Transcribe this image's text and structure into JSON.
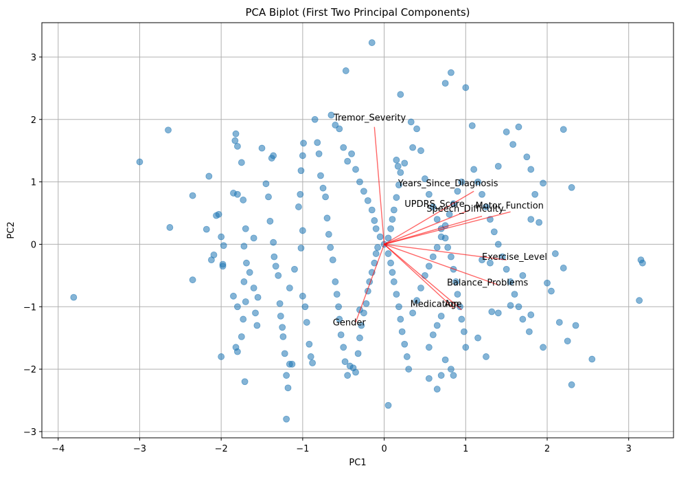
{
  "chart_data": {
    "type": "scatter",
    "title": "PCA Biplot (First Two Principal Components)",
    "xlabel": "PC1",
    "ylabel": "PC2",
    "xlim": [
      -4.2,
      3.55
    ],
    "ylim": [
      -3.1,
      3.55
    ],
    "xticks": [
      -4,
      -3,
      -2,
      -1,
      0,
      1,
      2,
      3
    ],
    "yticks": [
      -3,
      -2,
      -1,
      0,
      1,
      2,
      3
    ],
    "grid": true,
    "colors": {
      "points": "#1f77b4",
      "loadings": "#ff0000",
      "grid": "#b0b0b0"
    },
    "loadings": [
      {
        "label": "Tremor_Severity",
        "x": -0.12,
        "y": 1.88,
        "label_x": -0.62,
        "label_y": 1.98
      },
      {
        "label": "Years_Since_Diagnosis",
        "x": 1.1,
        "y": 0.85,
        "label_x": 0.17,
        "label_y": 0.93
      },
      {
        "label": "UPDRS_Score",
        "x": 1.05,
        "y": 0.55,
        "label_x": 0.25,
        "label_y": 0.6
      },
      {
        "label": "Motor_Function",
        "x": 1.55,
        "y": 0.52,
        "label_x": 1.12,
        "label_y": 0.57
      },
      {
        "label": "Speech_Difficulty",
        "x": 1.2,
        "y": 0.45,
        "label_x": 0.52,
        "label_y": 0.52
      },
      {
        "label": "Exercise_Level",
        "x": 1.5,
        "y": -0.25,
        "label_x": 1.2,
        "label_y": -0.25
      },
      {
        "label": "Balance_Problems",
        "x": 1.4,
        "y": -0.65,
        "label_x": 0.77,
        "label_y": -0.66
      },
      {
        "label": "Medication",
        "x": 0.85,
        "y": -1.02,
        "label_x": 0.32,
        "label_y": -1.0
      },
      {
        "label": "Age",
        "x": 0.95,
        "y": -1.05,
        "label_x": 0.74,
        "label_y": -1.0
      },
      {
        "label": "Gender",
        "x": -0.35,
        "y": -1.25,
        "label_x": -0.63,
        "label_y": -1.3
      }
    ],
    "points": [
      [
        -3.81,
        -0.85
      ],
      [
        -3.0,
        1.32
      ],
      [
        -2.65,
        1.83
      ],
      [
        -2.63,
        0.27
      ],
      [
        -2.35,
        0.78
      ],
      [
        -2.35,
        -0.57
      ],
      [
        -2.15,
        1.09
      ],
      [
        -2.18,
        0.24
      ],
      [
        -2.12,
        -0.25
      ],
      [
        -2.06,
        0.46
      ],
      [
        -2.03,
        0.48
      ],
      [
        -2.0,
        0.12
      ],
      [
        -1.98,
        -0.32
      ],
      [
        -1.98,
        -0.35
      ],
      [
        -2.0,
        -1.8
      ],
      [
        -1.97,
        -0.02
      ],
      [
        -2.09,
        -0.17
      ],
      [
        -1.85,
        0.82
      ],
      [
        -1.82,
        1.77
      ],
      [
        -1.83,
        1.66
      ],
      [
        -1.8,
        1.57
      ],
      [
        -1.8,
        0.8
      ],
      [
        -1.75,
        1.31
      ],
      [
        -1.73,
        0.71
      ],
      [
        -1.7,
        0.25
      ],
      [
        -1.72,
        -0.03
      ],
      [
        -1.69,
        -0.3
      ],
      [
        -1.7,
        -0.92
      ],
      [
        -1.73,
        -1.2
      ],
      [
        -1.75,
        -1.48
      ],
      [
        -1.71,
        -2.2
      ],
      [
        -1.85,
        -0.83
      ],
      [
        -1.82,
        -1.65
      ],
      [
        -1.8,
        -1.72
      ],
      [
        -1.8,
        -1.0
      ],
      [
        -1.72,
        -0.6
      ],
      [
        -1.65,
        -0.45
      ],
      [
        -1.6,
        -0.7
      ],
      [
        -1.58,
        -1.1
      ],
      [
        -1.56,
        -1.3
      ],
      [
        -1.55,
        -0.85
      ],
      [
        -1.6,
        0.1
      ],
      [
        -1.5,
        1.54
      ],
      [
        -1.45,
        0.97
      ],
      [
        -1.42,
        0.76
      ],
      [
        -1.4,
        0.37
      ],
      [
        -1.38,
        1.38
      ],
      [
        -1.36,
        1.42
      ],
      [
        -1.36,
        0.03
      ],
      [
        -1.35,
        -0.2
      ],
      [
        -1.33,
        -0.35
      ],
      [
        -1.3,
        -0.5
      ],
      [
        -1.28,
        -0.95
      ],
      [
        -1.27,
        -1.15
      ],
      [
        -1.25,
        -1.33
      ],
      [
        -1.24,
        -1.48
      ],
      [
        -1.22,
        -1.75
      ],
      [
        -1.2,
        -2.1
      ],
      [
        -1.2,
        -2.8
      ],
      [
        -1.18,
        -2.3
      ],
      [
        -1.16,
        -1.92
      ],
      [
        -1.13,
        -1.92
      ],
      [
        -1.16,
        -0.7
      ],
      [
        -1.1,
        -0.4
      ],
      [
        -1.05,
        0.6
      ],
      [
        -1.03,
        0.8
      ],
      [
        -1.02,
        1.18
      ],
      [
        -1.0,
        1.42
      ],
      [
        -0.99,
        1.62
      ],
      [
        -1.0,
        0.22
      ],
      [
        -1.02,
        -0.06
      ],
      [
        -1.0,
        -0.83
      ],
      [
        -0.97,
        -1.0
      ],
      [
        -0.95,
        -1.25
      ],
      [
        -0.92,
        -1.6
      ],
      [
        -0.9,
        -1.8
      ],
      [
        -0.88,
        -1.9
      ],
      [
        -0.85,
        2.0
      ],
      [
        -0.82,
        1.63
      ],
      [
        -0.8,
        1.45
      ],
      [
        -0.78,
        1.1
      ],
      [
        -0.75,
        0.9
      ],
      [
        -0.72,
        0.76
      ],
      [
        -0.7,
        0.42
      ],
      [
        -0.68,
        0.16
      ],
      [
        -0.66,
        -0.05
      ],
      [
        -0.63,
        -0.25
      ],
      [
        -0.6,
        -0.6
      ],
      [
        -0.58,
        -0.8
      ],
      [
        -0.56,
        -1.0
      ],
      [
        -0.55,
        -1.2
      ],
      [
        -0.53,
        -1.45
      ],
      [
        -0.5,
        -1.65
      ],
      [
        -0.48,
        -1.88
      ],
      [
        -0.45,
        -2.1
      ],
      [
        -0.42,
        -1.95
      ],
      [
        -0.38,
        -1.98
      ],
      [
        -0.35,
        -2.05
      ],
      [
        -0.32,
        -1.75
      ],
      [
        -0.3,
        -1.5
      ],
      [
        -0.28,
        -1.3
      ],
      [
        -0.25,
        -1.1
      ],
      [
        -0.22,
        -0.95
      ],
      [
        -0.2,
        -0.75
      ],
      [
        -0.18,
        -0.6
      ],
      [
        -0.15,
        -0.45
      ],
      [
        -0.12,
        -0.3
      ],
      [
        -0.1,
        -0.15
      ],
      [
        -0.08,
        -0.05
      ],
      [
        -0.65,
        2.07
      ],
      [
        -0.6,
        1.91
      ],
      [
        -0.55,
        1.85
      ],
      [
        -0.5,
        1.55
      ],
      [
        -0.45,
        1.33
      ],
      [
        -0.4,
        1.45
      ],
      [
        -0.35,
        1.2
      ],
      [
        -0.3,
        1.0
      ],
      [
        -0.25,
        0.85
      ],
      [
        -0.2,
        0.7
      ],
      [
        -0.15,
        0.55
      ],
      [
        -0.12,
        0.38
      ],
      [
        -0.1,
        0.25
      ],
      [
        -0.05,
        0.12
      ],
      [
        0.0,
        0.0
      ],
      [
        -0.47,
        2.78
      ],
      [
        -0.15,
        3.23
      ],
      [
        -0.3,
        -1.05
      ],
      [
        0.05,
        0.1
      ],
      [
        0.08,
        0.25
      ],
      [
        0.1,
        0.4
      ],
      [
        0.12,
        0.55
      ],
      [
        0.15,
        0.75
      ],
      [
        0.18,
        0.95
      ],
      [
        0.2,
        1.15
      ],
      [
        0.25,
        1.3
      ],
      [
        0.2,
        2.4
      ],
      [
        0.15,
        1.35
      ],
      [
        0.17,
        1.25
      ],
      [
        0.33,
        1.96
      ],
      [
        0.35,
        1.55
      ],
      [
        0.4,
        1.85
      ],
      [
        0.45,
        1.5
      ],
      [
        0.5,
        1.05
      ],
      [
        0.55,
        0.8
      ],
      [
        0.6,
        0.6
      ],
      [
        0.65,
        0.4
      ],
      [
        0.7,
        0.25
      ],
      [
        0.75,
        0.1
      ],
      [
        0.78,
        -0.05
      ],
      [
        0.82,
        -0.2
      ],
      [
        0.85,
        -0.4
      ],
      [
        0.88,
        -0.6
      ],
      [
        0.9,
        -0.8
      ],
      [
        0.93,
        -1.0
      ],
      [
        0.95,
        -1.2
      ],
      [
        0.98,
        -1.4
      ],
      [
        1.0,
        -1.65
      ],
      [
        0.05,
        -0.15
      ],
      [
        0.08,
        -0.3
      ],
      [
        0.1,
        -0.45
      ],
      [
        0.12,
        -0.6
      ],
      [
        0.15,
        -0.8
      ],
      [
        0.18,
        -1.0
      ],
      [
        0.2,
        -1.2
      ],
      [
        0.22,
        -1.4
      ],
      [
        0.25,
        -1.6
      ],
      [
        0.28,
        -1.8
      ],
      [
        0.3,
        -2.0
      ],
      [
        0.05,
        -2.58
      ],
      [
        0.55,
        -2.15
      ],
      [
        0.65,
        -2.32
      ],
      [
        0.7,
        -2.1
      ],
      [
        0.75,
        -1.85
      ],
      [
        0.82,
        -2.0
      ],
      [
        0.85,
        -2.1
      ],
      [
        0.55,
        -1.65
      ],
      [
        0.6,
        -1.45
      ],
      [
        0.65,
        -1.3
      ],
      [
        0.7,
        -1.15
      ],
      [
        0.35,
        -1.1
      ],
      [
        0.4,
        -0.9
      ],
      [
        0.45,
        -0.7
      ],
      [
        0.5,
        -0.5
      ],
      [
        0.55,
        -0.35
      ],
      [
        0.6,
        -0.2
      ],
      [
        0.65,
        -0.05
      ],
      [
        0.7,
        0.12
      ],
      [
        0.75,
        0.3
      ],
      [
        0.8,
        0.48
      ],
      [
        0.85,
        0.65
      ],
      [
        0.9,
        0.85
      ],
      [
        0.95,
        1.0
      ],
      [
        0.75,
        2.58
      ],
      [
        0.82,
        2.75
      ],
      [
        1.0,
        2.51
      ],
      [
        1.08,
        1.9
      ],
      [
        1.1,
        1.2
      ],
      [
        1.15,
        1.0
      ],
      [
        1.2,
        0.8
      ],
      [
        1.25,
        0.6
      ],
      [
        1.3,
        0.4
      ],
      [
        1.35,
        0.2
      ],
      [
        1.4,
        0.0
      ],
      [
        1.45,
        -0.2
      ],
      [
        1.5,
        -0.4
      ],
      [
        1.55,
        -0.6
      ],
      [
        1.6,
        -0.8
      ],
      [
        1.65,
        -1.0
      ],
      [
        1.7,
        -1.2
      ],
      [
        1.15,
        -1.5
      ],
      [
        1.25,
        -1.8
      ],
      [
        1.2,
        -0.25
      ],
      [
        1.3,
        -0.3
      ],
      [
        1.4,
        1.25
      ],
      [
        1.5,
        1.8
      ],
      [
        1.58,
        1.6
      ],
      [
        1.65,
        1.88
      ],
      [
        1.75,
        1.4
      ],
      [
        1.8,
        1.2
      ],
      [
        1.85,
        0.8
      ],
      [
        1.8,
        0.4
      ],
      [
        1.9,
        0.35
      ],
      [
        1.95,
        0.98
      ],
      [
        1.7,
        -0.5
      ],
      [
        2.2,
        1.84
      ],
      [
        2.3,
        0.91
      ],
      [
        2.1,
        -0.15
      ],
      [
        2.2,
        -0.38
      ],
      [
        2.0,
        -0.62
      ],
      [
        2.05,
        -0.75
      ],
      [
        2.15,
        -1.25
      ],
      [
        2.25,
        -1.55
      ],
      [
        2.35,
        -1.3
      ],
      [
        2.55,
        -1.84
      ],
      [
        2.3,
        -2.25
      ],
      [
        1.8,
        -1.13
      ],
      [
        1.78,
        -1.4
      ],
      [
        1.55,
        -0.98
      ],
      [
        1.4,
        -1.1
      ],
      [
        1.32,
        -1.08
      ],
      [
        1.95,
        -1.65
      ],
      [
        3.15,
        -0.25
      ],
      [
        3.17,
        -0.3
      ],
      [
        3.13,
        -0.9
      ]
    ]
  }
}
